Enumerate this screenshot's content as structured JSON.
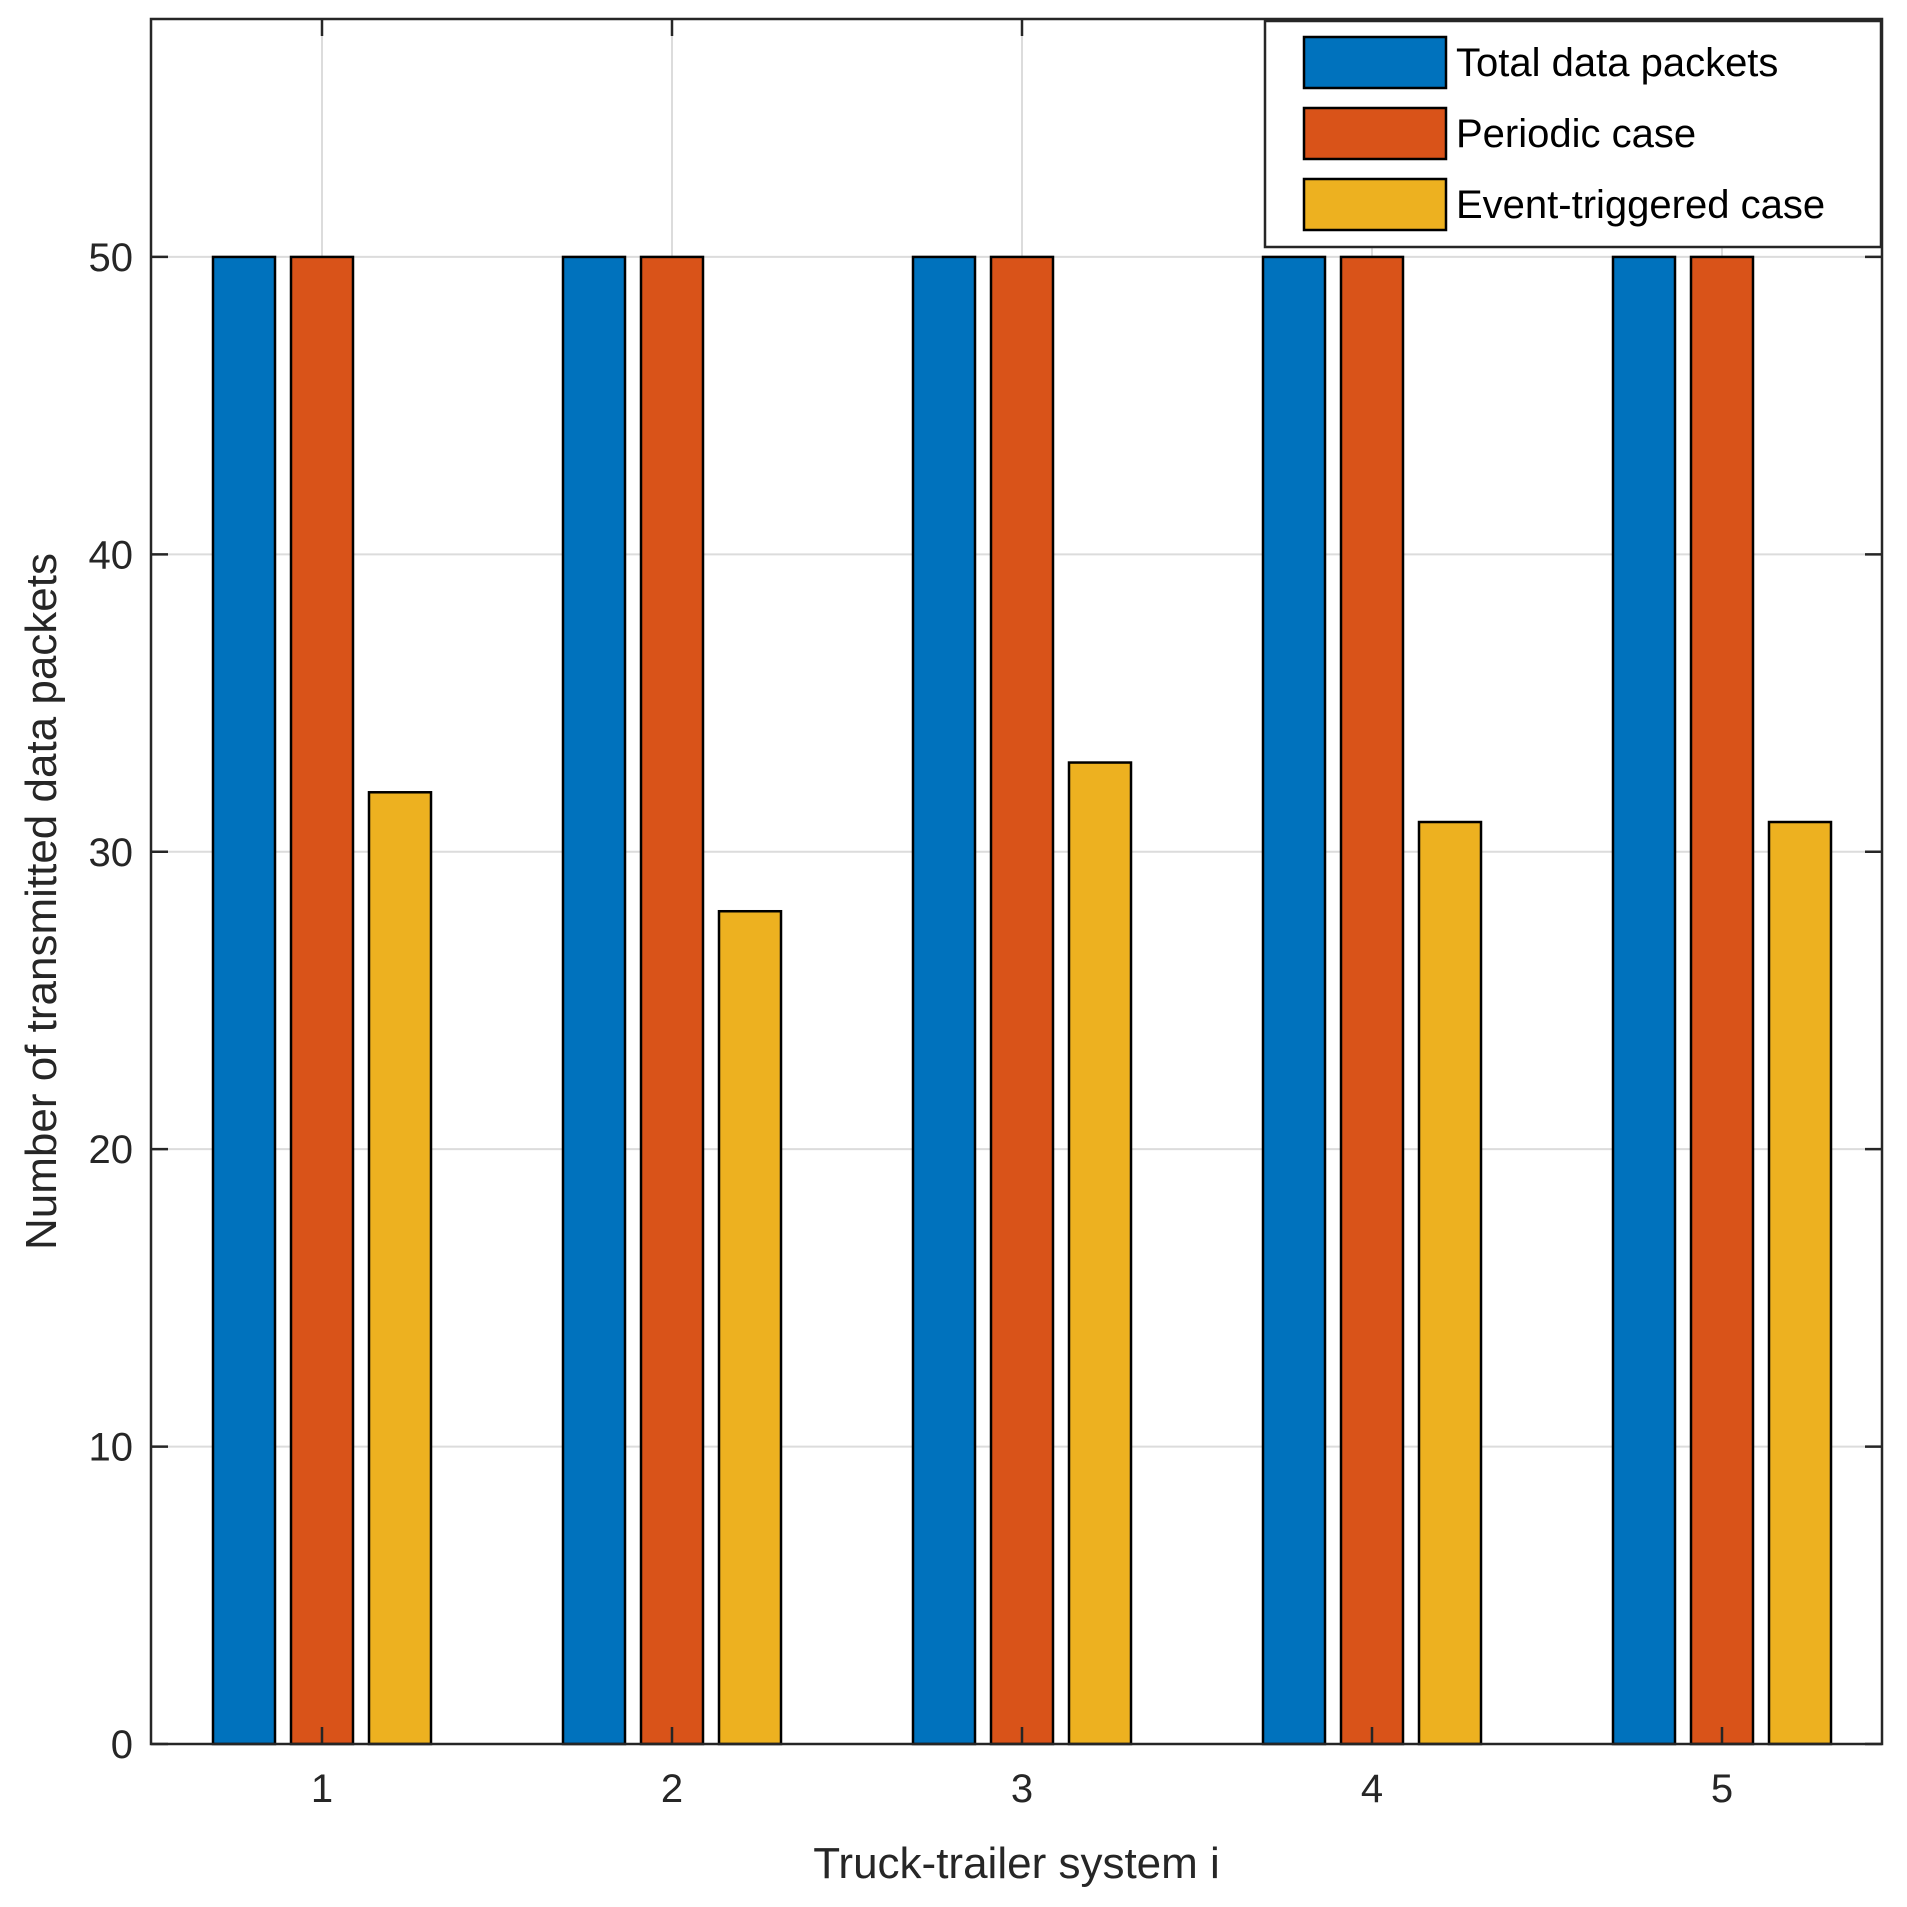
{
  "chart_data": {
    "type": "bar",
    "title": "",
    "xlabel": "Truck-trailer system i",
    "ylabel": "Number of transmitted data packets",
    "categories": [
      "1",
      "2",
      "3",
      "4",
      "5"
    ],
    "series": [
      {
        "name": "Total data packets",
        "values": [
          50,
          50,
          50,
          50,
          50
        ],
        "color": "#0072BD"
      },
      {
        "name": "Periodic case",
        "values": [
          50,
          50,
          50,
          50,
          50
        ],
        "color": "#D95319"
      },
      {
        "name": "Event-triggered case",
        "values": [
          32,
          28,
          33,
          31,
          31
        ],
        "color": "#EDB120"
      }
    ],
    "ylim": [
      0,
      58
    ],
    "yticks": [
      "0",
      "10",
      "20",
      "30",
      "40",
      "50"
    ],
    "grid": true,
    "legend_position": "top-right"
  }
}
